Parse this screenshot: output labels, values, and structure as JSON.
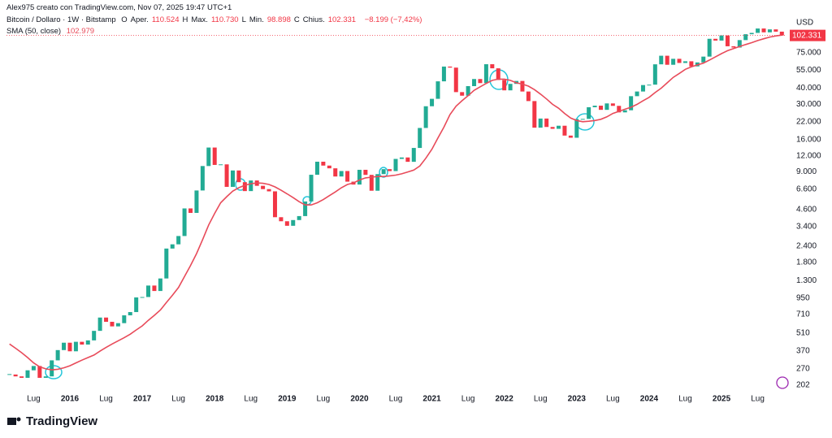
{
  "header": {
    "author_line": "Alex975 creato con TradingView.com, Nov 07, 2025 19:47 UTC+1",
    "ohlc": [
      {
        "label": "O",
        "sub": "Aper.",
        "value": "110.524"
      },
      {
        "label": "H",
        "sub": "Max.",
        "value": "110.730"
      },
      {
        "label": "L",
        "sub": "Min.",
        "value": "98.898"
      },
      {
        "label": "C",
        "sub": "Chius.",
        "value": "102.331"
      }
    ],
    "change": "−8.199 (−7,42%)",
    "sma_value": "102.979",
    "currency": "USD"
  },
  "footer": {
    "brand": "TradingView"
  },
  "chart_data": {
    "type": "candlestick",
    "x": [
      "2015-03",
      "2015-04",
      "2015-05",
      "2015-06",
      "2015-07",
      "2015-08",
      "2015-09",
      "2015-10",
      "2015-11",
      "2015-12",
      "2016-01",
      "2016-02",
      "2016-03",
      "2016-04",
      "2016-05",
      "2016-06",
      "2016-07",
      "2016-08",
      "2016-09",
      "2016-10",
      "2016-11",
      "2016-12",
      "2017-01",
      "2017-02",
      "2017-03",
      "2017-04",
      "2017-05",
      "2017-06",
      "2017-07",
      "2017-08",
      "2017-09",
      "2017-10",
      "2017-11",
      "2017-12",
      "2018-01",
      "2018-02",
      "2018-03",
      "2018-04",
      "2018-05",
      "2018-06",
      "2018-07",
      "2018-08",
      "2018-09",
      "2018-10",
      "2018-11",
      "2018-12",
      "2019-01",
      "2019-02",
      "2019-03",
      "2019-04",
      "2019-05",
      "2019-06",
      "2019-07",
      "2019-08",
      "2019-09",
      "2019-10",
      "2019-11",
      "2019-12",
      "2020-01",
      "2020-02",
      "2020-03",
      "2020-04",
      "2020-05",
      "2020-06",
      "2020-07",
      "2020-08",
      "2020-09",
      "2020-10",
      "2020-11",
      "2020-12",
      "2021-01",
      "2021-02",
      "2021-03",
      "2021-04",
      "2021-05",
      "2021-06",
      "2021-07",
      "2021-08",
      "2021-09",
      "2021-10",
      "2021-11",
      "2021-12",
      "2022-01",
      "2022-02",
      "2022-03",
      "2022-04",
      "2022-05",
      "2022-06",
      "2022-07",
      "2022-08",
      "2022-09",
      "2022-10",
      "2022-11",
      "2022-12",
      "2023-01",
      "2023-02",
      "2023-03",
      "2023-04",
      "2023-05",
      "2023-06",
      "2023-07",
      "2023-08",
      "2023-09",
      "2023-10",
      "2023-11",
      "2023-12",
      "2024-01",
      "2024-02",
      "2024-03",
      "2024-04",
      "2024-05",
      "2024-06",
      "2024-07",
      "2024-08",
      "2024-09",
      "2024-10",
      "2024-11",
      "2024-12",
      "2025-01",
      "2025-02",
      "2025-03",
      "2025-04",
      "2025-05",
      "2025-06",
      "2025-07",
      "2025-08",
      "2025-09",
      "2025-10",
      "2025-11"
    ],
    "series": [
      {
        "name": "Bitcoin / Dollaro · 1W · Bitstamp",
        "up_color": "#22ab94",
        "down_color": "#f23645",
        "values": [
          244,
          236,
          230,
          263,
          284,
          230,
          236,
          314,
          377,
          430,
          369,
          437,
          416,
          448,
          531,
          673,
          624,
          575,
          609,
          700,
          742,
          963,
          970,
          1190,
          1080,
          1350,
          2300,
          2480,
          2875,
          4700,
          4340,
          6470,
          10000,
          13900,
          10200,
          10300,
          6900,
          9240,
          7500,
          6400,
          7730,
          7030,
          6630,
          6370,
          4020,
          3740,
          3450,
          3820,
          4100,
          5320,
          8560,
          10800,
          10080,
          9600,
          8300,
          9150,
          7570,
          7190,
          9350,
          8540,
          6440,
          8660,
          9460,
          9140,
          11350,
          11650,
          10780,
          13800,
          19700,
          29000,
          33100,
          45200,
          58800,
          57700,
          37300,
          35000,
          41500,
          47100,
          43800,
          61300,
          57000,
          46300,
          38500,
          43200,
          45500,
          37700,
          31800,
          19800,
          23300,
          20050,
          19400,
          20500,
          17200,
          16550,
          23100,
          23150,
          28500,
          29300,
          27200,
          30500,
          29200,
          26000,
          27000,
          34700,
          37700,
          42300,
          42600,
          61200,
          71300,
          60700,
          67500,
          62700,
          64600,
          59000,
          63300,
          70200,
          96400,
          93400,
          102400,
          84400,
          82500,
          94200,
          104600,
          107100,
          115800,
          108200,
          114000,
          109500,
          102331
        ]
      },
      {
        "name": "SMA (50, close)",
        "color": "#e84b5a",
        "values": [
          420,
          390,
          360,
          330,
          300,
          280,
          270,
          265,
          268,
          275,
          285,
          300,
          315,
          330,
          345,
          370,
          395,
          420,
          445,
          470,
          500,
          540,
          580,
          640,
          700,
          770,
          880,
          1000,
          1150,
          1400,
          1700,
          2100,
          2700,
          3500,
          4300,
          5200,
          5800,
          6400,
          6800,
          7100,
          7300,
          7400,
          7350,
          7200,
          6900,
          6500,
          6100,
          5700,
          5300,
          5000,
          5000,
          5200,
          5500,
          5900,
          6300,
          6800,
          7200,
          7400,
          7800,
          8100,
          8200,
          8300,
          8300,
          8400,
          8500,
          8700,
          9000,
          9300,
          10000,
          11500,
          13500,
          16500,
          20000,
          25000,
          29000,
          32000,
          35000,
          38500,
          41000,
          43500,
          46000,
          47000,
          47000,
          46000,
          44000,
          43000,
          41500,
          39000,
          36000,
          33000,
          30000,
          28000,
          25500,
          23500,
          22500,
          22000,
          22200,
          22500,
          23000,
          24000,
          25500,
          26500,
          27500,
          28500,
          30000,
          32000,
          34000,
          37000,
          40000,
          44000,
          48500,
          52000,
          56000,
          58500,
          60500,
          62500,
          66000,
          70000,
          74000,
          78000,
          81000,
          84000,
          87000,
          90000,
          93500,
          96500,
          99500,
          101500,
          102979
        ]
      }
    ],
    "log_scale": true,
    "grid": false,
    "ylim": [
      185,
      128300
    ],
    "yticks": [
      202,
      270,
      370,
      510,
      710,
      950,
      {
        "value": 1300,
        "label": "1.300"
      },
      {
        "value": 1800,
        "label": "1.800"
      },
      {
        "value": 2400,
        "label": "2.400"
      },
      {
        "value": 3400,
        "label": "3.400"
      },
      {
        "value": 4600,
        "label": "4.600"
      },
      {
        "value": 6600,
        "label": "6.600"
      },
      {
        "value": 9000,
        "label": "9.000"
      },
      {
        "value": 12000,
        "label": "12.000"
      },
      {
        "value": 16000,
        "label": "16.000"
      },
      {
        "value": 22000,
        "label": "22.000"
      },
      {
        "value": 30000,
        "label": "30.000"
      },
      {
        "value": 40000,
        "label": "40.000"
      },
      {
        "value": 55000,
        "label": "55.000"
      },
      {
        "value": 75000,
        "label": "75.000"
      }
    ],
    "xticks": [
      {
        "value": "2015-07",
        "label": "Lug"
      },
      {
        "value": "2016-01",
        "label": "2016"
      },
      {
        "value": "2016-07",
        "label": "Lug"
      },
      {
        "value": "2017-01",
        "label": "2017"
      },
      {
        "value": "2017-07",
        "label": "Lug"
      },
      {
        "value": "2018-01",
        "label": "2018"
      },
      {
        "value": "2018-07",
        "label": "Lug"
      },
      {
        "value": "2019-01",
        "label": "2019"
      },
      {
        "value": "2019-07",
        "label": "Lug"
      },
      {
        "value": "2020-01",
        "label": "2020"
      },
      {
        "value": "2020-07",
        "label": "Lug"
      },
      {
        "value": "2021-01",
        "label": "2021"
      },
      {
        "value": "2021-07",
        "label": "Lug"
      },
      {
        "value": "2022-01",
        "label": "2022"
      },
      {
        "value": "2022-07",
        "label": "Lug"
      },
      {
        "value": "2023-01",
        "label": "2023"
      },
      {
        "value": "2023-07",
        "label": "Lug"
      },
      {
        "value": "2024-01",
        "label": "2024"
      },
      {
        "value": "2024-07",
        "label": "Lug"
      },
      {
        "value": "2025-01",
        "label": "2025"
      },
      {
        "value": "2025-07",
        "label": "Lug"
      }
    ]
  }
}
